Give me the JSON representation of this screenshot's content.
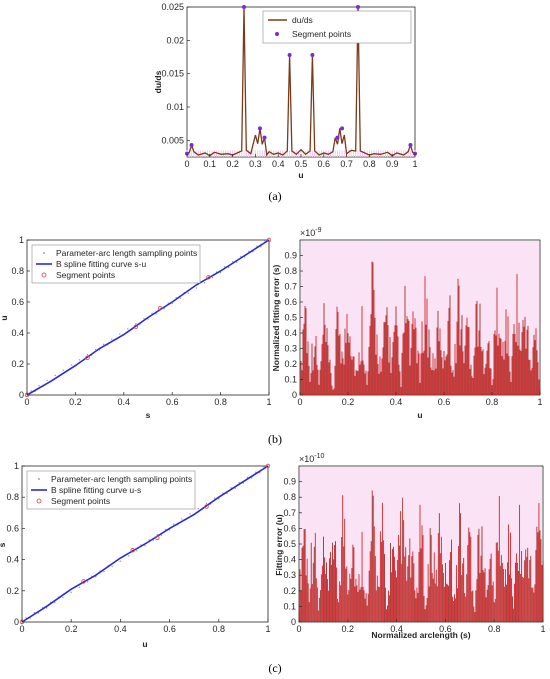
{
  "chart_data": [
    {
      "type": "line",
      "panel": "a",
      "caption": "(a)",
      "xlabel": "u",
      "ylabel": "du/ds",
      "xlim": [
        0,
        1
      ],
      "ylim": [
        0.0025,
        0.025
      ],
      "xticks": [
        "0",
        "0.1",
        "0.2",
        "0.3",
        "0.4",
        "0.5",
        "0.6",
        "0.7",
        "0.8",
        "0.9",
        "1"
      ],
      "yticks": [
        "0.005",
        "0.01",
        "0.015",
        "0.02",
        "0.025"
      ],
      "legend": [
        "du/ds",
        "Segment points"
      ],
      "legend_position": "top-right",
      "series": [
        {
          "name": "du/ds",
          "color": "#7b3a1a",
          "x": [
            0,
            0.01,
            0.02,
            0.03,
            0.05,
            0.08,
            0.1,
            0.12,
            0.15,
            0.18,
            0.2,
            0.22,
            0.24,
            0.25,
            0.26,
            0.28,
            0.3,
            0.31,
            0.32,
            0.33,
            0.34,
            0.35,
            0.36,
            0.38,
            0.4,
            0.42,
            0.44,
            0.45,
            0.46,
            0.48,
            0.5,
            0.52,
            0.54,
            0.55,
            0.56,
            0.58,
            0.6,
            0.62,
            0.64,
            0.65,
            0.66,
            0.67,
            0.68,
            0.69,
            0.7,
            0.72,
            0.74,
            0.75,
            0.76,
            0.78,
            0.8,
            0.82,
            0.85,
            0.88,
            0.9,
            0.92,
            0.95,
            0.97,
            0.98,
            0.99,
            1
          ],
          "y": [
            0.003,
            0.0032,
            0.0043,
            0.0033,
            0.0028,
            0.0031,
            0.0027,
            0.0032,
            0.0029,
            0.003,
            0.0028,
            0.0031,
            0.0034,
            0.025,
            0.0035,
            0.003,
            0.0058,
            0.0045,
            0.0068,
            0.0044,
            0.0054,
            0.0028,
            0.0033,
            0.0029,
            0.0031,
            0.0028,
            0.0034,
            0.0178,
            0.0034,
            0.0029,
            0.0036,
            0.0029,
            0.0034,
            0.0178,
            0.0034,
            0.0028,
            0.0031,
            0.0029,
            0.0033,
            0.0054,
            0.0044,
            0.0068,
            0.0045,
            0.0058,
            0.003,
            0.0035,
            0.0034,
            0.025,
            0.0034,
            0.0031,
            0.0028,
            0.003,
            0.0029,
            0.0032,
            0.0027,
            0.0031,
            0.0028,
            0.0033,
            0.0043,
            0.0032,
            0.003
          ]
        },
        {
          "name": "Segment points",
          "color": "#7a2bd6",
          "x": [
            0,
            0.02,
            0.25,
            0.32,
            0.34,
            0.45,
            0.55,
            0.66,
            0.68,
            0.75,
            0.98,
            1
          ],
          "y": [
            0.003,
            0.0043,
            0.025,
            0.0068,
            0.0054,
            0.0178,
            0.0178,
            0.0054,
            0.0068,
            0.025,
            0.0043,
            0.003
          ]
        }
      ]
    },
    {
      "type": "line",
      "panel": "b-left",
      "xlabel": "s",
      "ylabel": "u",
      "xlim": [
        0,
        1
      ],
      "ylim": [
        0,
        1
      ],
      "xticks": [
        "0",
        "0.2",
        "0.4",
        "0.6",
        "0.8",
        "1"
      ],
      "yticks": [
        "0",
        "0.2",
        "0.4",
        "0.6",
        "0.8",
        "1"
      ],
      "legend": [
        "Parameter-arc length sampling points",
        "B spline fitting curve s-u",
        "Segment points"
      ],
      "legend_position": "top-left",
      "series": [
        {
          "name": "B spline fitting curve s-u",
          "color": "#2a2adb",
          "x": [
            0,
            0.1,
            0.2,
            0.3,
            0.4,
            0.5,
            0.6,
            0.7,
            0.8,
            0.9,
            1
          ],
          "y": [
            0,
            0.09,
            0.19,
            0.3,
            0.39,
            0.5,
            0.6,
            0.71,
            0.8,
            0.9,
            1
          ]
        },
        {
          "name": "Segment points",
          "color": "#d94040",
          "x": [
            0,
            0.25,
            0.45,
            0.55,
            0.75,
            1
          ],
          "y": [
            0,
            0.24,
            0.44,
            0.56,
            0.76,
            1
          ]
        }
      ]
    },
    {
      "type": "line",
      "panel": "b-right",
      "caption": "(b)",
      "xlabel": "u",
      "ylabel": "Normalized fitting error (s)",
      "exponent": "×10",
      "exponent_power": "-9",
      "xlim": [
        0,
        1
      ],
      "ylim": [
        0,
        1
      ],
      "xticks": [
        "0",
        "0.2",
        "0.4",
        "0.6",
        "0.8",
        "1"
      ],
      "yticks": [
        "0",
        "0.1",
        "0.2",
        "0.3",
        "0.4",
        "0.5",
        "0.6",
        "0.7",
        "0.8",
        "0.9"
      ],
      "series": [
        {
          "name": "",
          "color": "#cc1010",
          "x": [
            0,
            0.02,
            0.04,
            0.06,
            0.08,
            0.1,
            0.12,
            0.14,
            0.16,
            0.18,
            0.2,
            0.22,
            0.24,
            0.26,
            0.28,
            0.3,
            0.32,
            0.34,
            0.36,
            0.38,
            0.4,
            0.42,
            0.44,
            0.46,
            0.48,
            0.5,
            0.52,
            0.54,
            0.56,
            0.58,
            0.6,
            0.62,
            0.64,
            0.66,
            0.68,
            0.7,
            0.72,
            0.74,
            0.76,
            0.78,
            0.8,
            0.82,
            0.84,
            0.86,
            0.88,
            0.9,
            0.92,
            0.94,
            0.96,
            0.98,
            1
          ],
          "y": [
            0.05,
            0.92,
            0.2,
            0.55,
            0.1,
            0.65,
            0.3,
            0.02,
            0.84,
            0.25,
            0.9,
            0.4,
            0.15,
            0.7,
            0.05,
            0.97,
            0.5,
            0.2,
            0.8,
            0.3,
            0.6,
            0.1,
            0.85,
            0.35,
            0.72,
            0.15,
            0.95,
            0.45,
            0.2,
            0.75,
            0.3,
            0.88,
            0.1,
            0.97,
            0.4,
            0.65,
            0.2,
            0.9,
            0.3,
            0.55,
            0.1,
            0.82,
            0.35,
            0.7,
            0.15,
            0.96,
            0.4,
            0.8,
            0.2,
            0.6,
            0.05
          ]
        }
      ]
    },
    {
      "type": "line",
      "panel": "c-left",
      "xlabel": "u",
      "ylabel": "s",
      "xlim": [
        0,
        1
      ],
      "ylim": [
        0,
        1
      ],
      "xticks": [
        "0",
        "0.2",
        "0.4",
        "0.6",
        "0.8",
        "1"
      ],
      "yticks": [
        "0",
        "0.2",
        "0.4",
        "0.6",
        "0.8",
        "1"
      ],
      "legend": [
        "Parameter-arc length sampling points",
        "B spline fitting curve u-s",
        "Segment points"
      ],
      "legend_position": "top-left",
      "series": [
        {
          "name": "B spline fitting curve u-s",
          "color": "#2a2adb",
          "x": [
            0,
            0.1,
            0.2,
            0.3,
            0.4,
            0.5,
            0.6,
            0.7,
            0.8,
            0.9,
            1
          ],
          "y": [
            0,
            0.1,
            0.21,
            0.3,
            0.41,
            0.5,
            0.6,
            0.69,
            0.8,
            0.9,
            1
          ]
        },
        {
          "name": "Segment points",
          "color": "#d94040",
          "x": [
            0,
            0.25,
            0.45,
            0.55,
            0.75,
            1
          ],
          "y": [
            0,
            0.26,
            0.46,
            0.54,
            0.74,
            1
          ]
        }
      ]
    },
    {
      "type": "line",
      "panel": "c-right",
      "caption": "(c)",
      "xlabel": "Normalized arclength (s)",
      "ylabel": "Fitting error (u)",
      "exponent": "×10",
      "exponent_power": "-10",
      "xlim": [
        0,
        1
      ],
      "ylim": [
        0,
        1
      ],
      "xticks": [
        "0",
        "0.2",
        "0.4",
        "0.6",
        "0.8",
        "1"
      ],
      "yticks": [
        "0",
        "0.1",
        "0.2",
        "0.3",
        "0.4",
        "0.5",
        "0.6",
        "0.7",
        "0.8",
        "0.9"
      ],
      "series": [
        {
          "name": "",
          "color": "#cc1010",
          "x": [
            0,
            0.02,
            0.04,
            0.06,
            0.08,
            0.1,
            0.12,
            0.14,
            0.16,
            0.18,
            0.2,
            0.22,
            0.24,
            0.26,
            0.28,
            0.3,
            0.32,
            0.34,
            0.36,
            0.38,
            0.4,
            0.42,
            0.44,
            0.46,
            0.48,
            0.5,
            0.52,
            0.54,
            0.56,
            0.58,
            0.6,
            0.62,
            0.64,
            0.66,
            0.68,
            0.7,
            0.72,
            0.74,
            0.76,
            0.78,
            0.8,
            0.82,
            0.84,
            0.86,
            0.88,
            0.9,
            0.92,
            0.94,
            0.96,
            0.98,
            1
          ],
          "y": [
            0.2,
            0.95,
            0.3,
            0.85,
            0.1,
            0.6,
            0.25,
            0.9,
            0.15,
            0.98,
            0.4,
            0.8,
            0.2,
            0.7,
            0.1,
            0.95,
            0.35,
            0.88,
            0.05,
            0.75,
            0.3,
            0.97,
            0.45,
            0.6,
            0.2,
            0.9,
            0.1,
            0.82,
            0.3,
            0.95,
            0.4,
            0.7,
            0.15,
            0.98,
            0.25,
            0.85,
            0.1,
            0.9,
            0.35,
            0.65,
            0.2,
            0.96,
            0.3,
            0.8,
            0.15,
            0.92,
            0.4,
            0.75,
            0.2,
            0.98,
            0.5
          ]
        }
      ]
    }
  ]
}
